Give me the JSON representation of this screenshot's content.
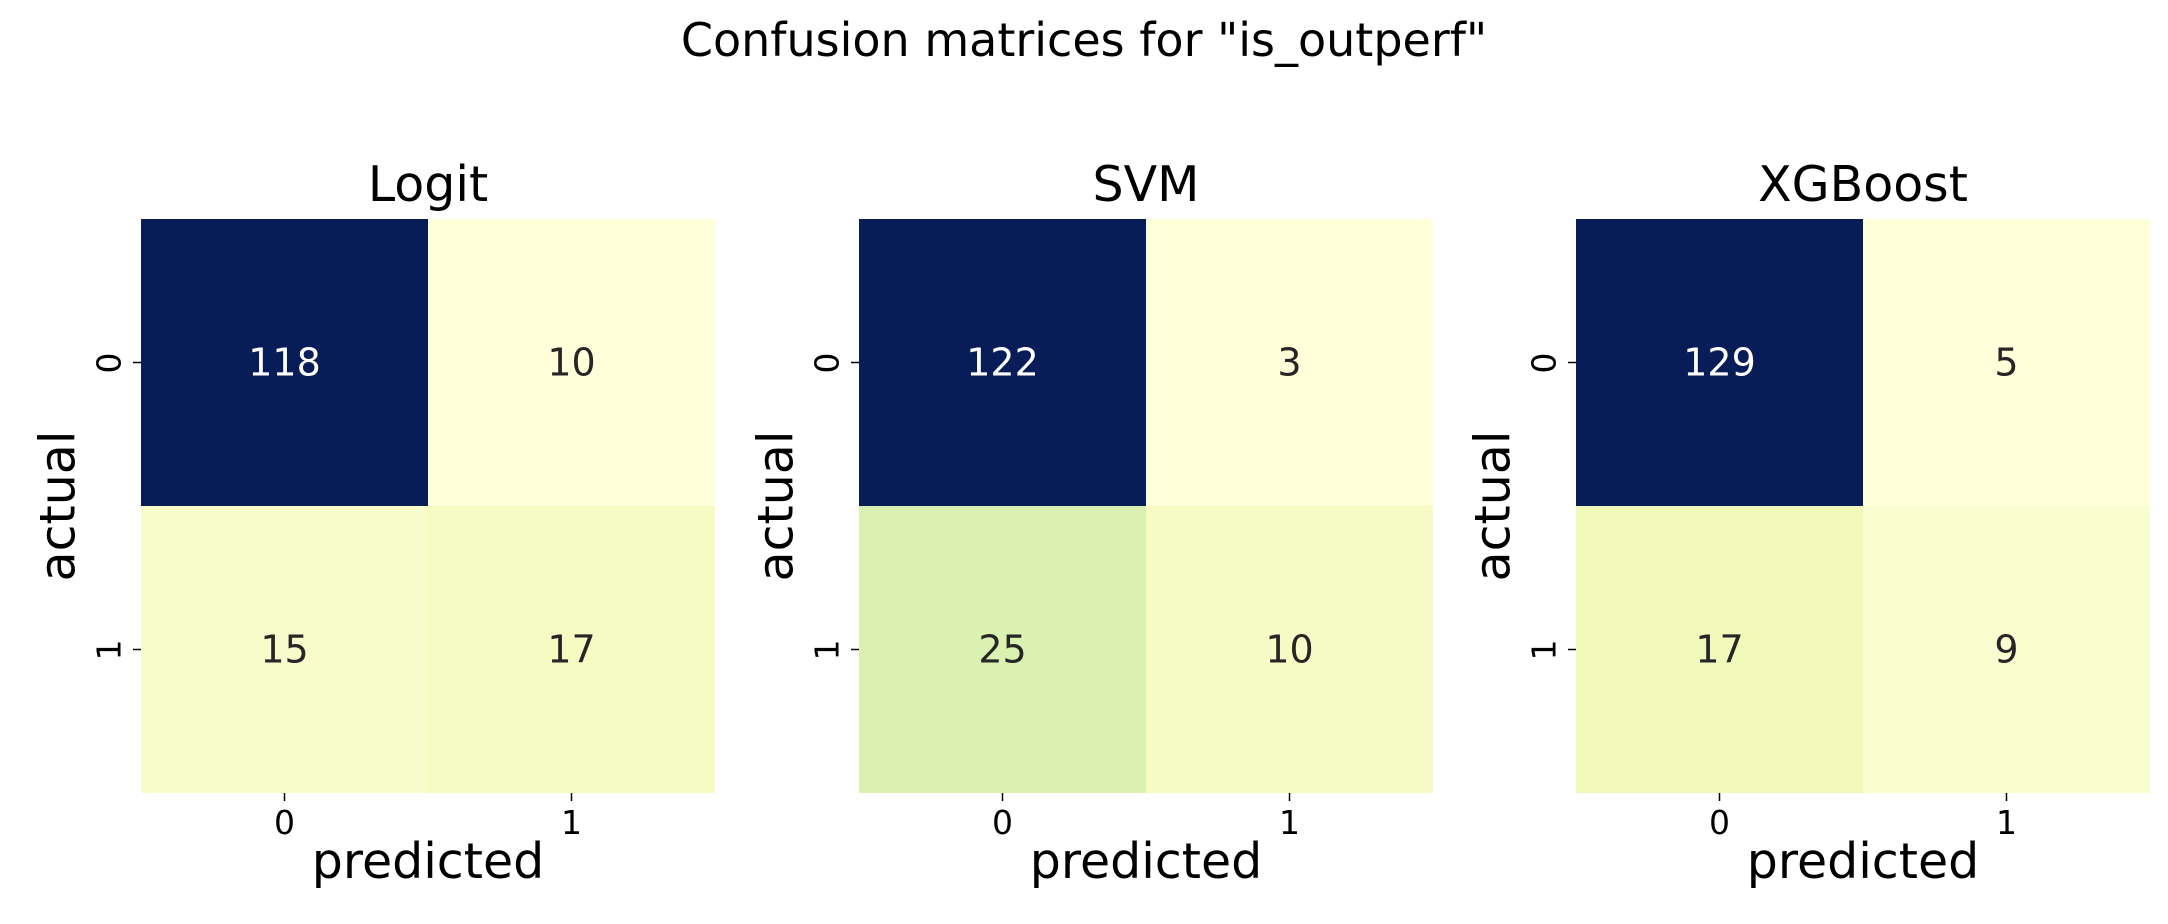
{
  "title": "Confusion matrices for \"is_outperf\"",
  "colormap": "YlGnBu",
  "chart_data": [
    {
      "type": "heatmap",
      "title": "Logit",
      "xlabel": "predicted",
      "ylabel": "actual",
      "x_ticks": [
        "0",
        "1"
      ],
      "y_ticks": [
        "0",
        "1"
      ],
      "matrix": [
        [
          118,
          10
        ],
        [
          15,
          17
        ]
      ]
    },
    {
      "type": "heatmap",
      "title": "SVM",
      "xlabel": "predicted",
      "ylabel": "actual",
      "x_ticks": [
        "0",
        "1"
      ],
      "y_ticks": [
        "0",
        "1"
      ],
      "matrix": [
        [
          122,
          3
        ],
        [
          25,
          10
        ]
      ]
    },
    {
      "type": "heatmap",
      "title": "XGBoost",
      "xlabel": "predicted",
      "ylabel": "actual",
      "x_ticks": [
        "0",
        "1"
      ],
      "y_ticks": [
        "0",
        "1"
      ],
      "matrix": [
        [
          129,
          5
        ],
        [
          17,
          9
        ]
      ]
    }
  ]
}
